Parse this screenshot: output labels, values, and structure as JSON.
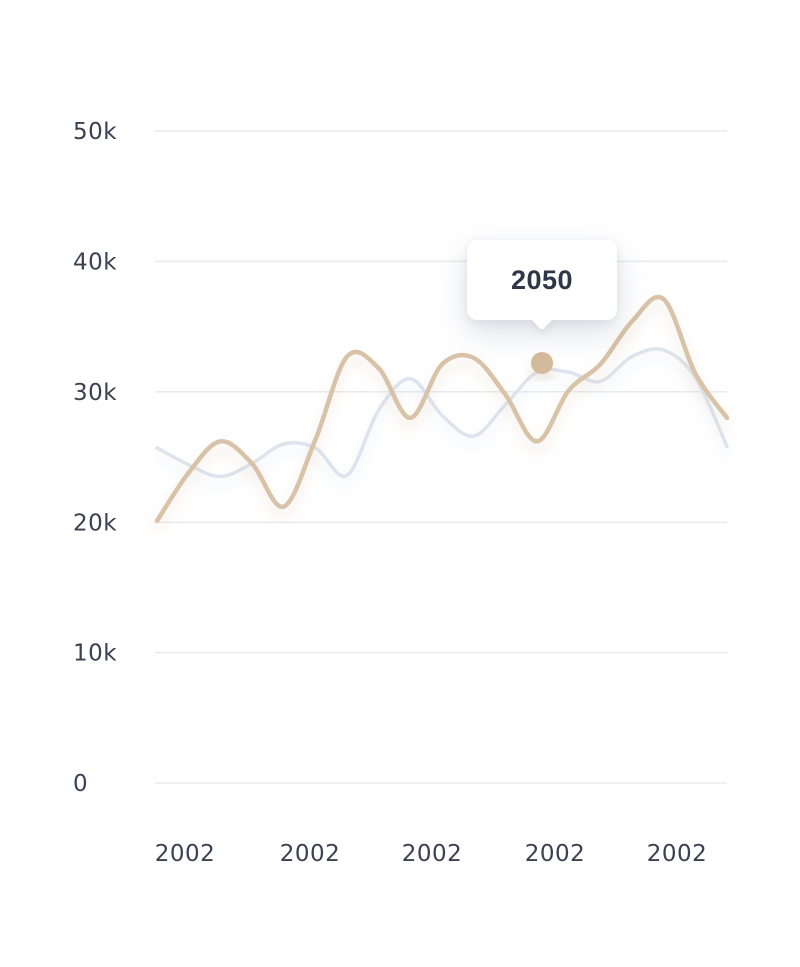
{
  "chart_data": {
    "type": "line",
    "title": "",
    "xlabel": "",
    "ylabel": "",
    "ylim": [
      0,
      50000
    ],
    "grid": "horizontal-only",
    "legend_position": "none",
    "y_tick_labels": [
      "50k",
      "40k",
      "30k",
      "20k",
      "10k",
      "0"
    ],
    "y_tick_values": [
      50000,
      40000,
      30000,
      20000,
      10000,
      0
    ],
    "x_tick_labels": [
      "2002",
      "2002",
      "2002",
      "2002",
      "2002"
    ],
    "series": [
      {
        "name": "background-line",
        "color": "#dde4ee",
        "values": [
          25700,
          24400,
          23500,
          24500,
          26000,
          25700,
          23600,
          28600,
          31000,
          28200,
          26600,
          29000,
          31500,
          31500,
          30800,
          32700,
          33200,
          31100,
          25800
        ]
      },
      {
        "name": "foreground-line",
        "color": "#d8c2a8",
        "values": [
          20100,
          23800,
          26200,
          24500,
          21200,
          26300,
          32700,
          31800,
          28000,
          32100,
          32600,
          29800,
          26200,
          30100,
          32100,
          35400,
          37100,
          31400,
          28000
        ]
      }
    ],
    "tooltip": {
      "label": "2050",
      "marker_value": 32200
    }
  },
  "colors": {
    "background": "#ffffff",
    "gridline": "#e8eaee",
    "axis_label": "#3a4150",
    "tooltip_text": "#2e3747",
    "marker": "#d4ba9d",
    "series_background": "#dde4ee",
    "series_foreground": "#d8c2a8"
  }
}
